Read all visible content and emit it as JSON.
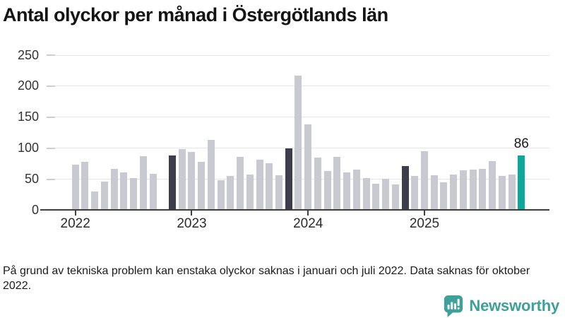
{
  "header": {
    "title": "Antal olyckor per månad i Östergötlands län"
  },
  "footer": {
    "note": "På grund av tekniska problem kan enstaka olyckor saknas i januari och juli 2022. Data saknas för oktober 2022.",
    "brand_name": "Newsworthy"
  },
  "chart_data": {
    "type": "bar",
    "title": "Antal olyckor per månad i Östergötlands län",
    "ylabel": "",
    "xlabel": "",
    "ylim": [
      0,
      250
    ],
    "yticks": [
      0,
      50,
      100,
      150,
      200,
      250
    ],
    "grid": "horizontal",
    "x_year_labels": [
      "2022",
      "2023",
      "2024",
      "2025"
    ],
    "annotation": {
      "label": "86",
      "month": "2025-11"
    },
    "colors": {
      "default": "#c9c9d1",
      "highlight": "#3d3d4c",
      "latest": "#0ca79d"
    },
    "series": [
      {
        "month": "2022-01",
        "value": 72,
        "role": "default"
      },
      {
        "month": "2022-02",
        "value": 76,
        "role": "default"
      },
      {
        "month": "2022-03",
        "value": 29,
        "role": "default"
      },
      {
        "month": "2022-04",
        "value": 44,
        "role": "default"
      },
      {
        "month": "2022-05",
        "value": 65,
        "role": "default"
      },
      {
        "month": "2022-06",
        "value": 59,
        "role": "default"
      },
      {
        "month": "2022-07",
        "value": 50,
        "role": "default"
      },
      {
        "month": "2022-08",
        "value": 85,
        "role": "default"
      },
      {
        "month": "2022-09",
        "value": 57,
        "role": "default"
      },
      {
        "month": "2022-10",
        "value": null,
        "role": "missing"
      },
      {
        "month": "2022-11",
        "value": 87,
        "role": "highlight"
      },
      {
        "month": "2022-12",
        "value": 97,
        "role": "default"
      },
      {
        "month": "2023-01",
        "value": 92,
        "role": "default"
      },
      {
        "month": "2023-02",
        "value": 76,
        "role": "default"
      },
      {
        "month": "2023-03",
        "value": 112,
        "role": "default"
      },
      {
        "month": "2023-04",
        "value": 47,
        "role": "default"
      },
      {
        "month": "2023-05",
        "value": 54,
        "role": "default"
      },
      {
        "month": "2023-06",
        "value": 84,
        "role": "default"
      },
      {
        "month": "2023-07",
        "value": 56,
        "role": "default"
      },
      {
        "month": "2023-08",
        "value": 80,
        "role": "default"
      },
      {
        "month": "2023-09",
        "value": 74,
        "role": "default"
      },
      {
        "month": "2023-10",
        "value": 55,
        "role": "default"
      },
      {
        "month": "2023-11",
        "value": 98,
        "role": "highlight"
      },
      {
        "month": "2023-12",
        "value": 215,
        "role": "default"
      },
      {
        "month": "2024-01",
        "value": 137,
        "role": "default"
      },
      {
        "month": "2024-02",
        "value": 83,
        "role": "default"
      },
      {
        "month": "2024-03",
        "value": 61,
        "role": "default"
      },
      {
        "month": "2024-04",
        "value": 84,
        "role": "default"
      },
      {
        "month": "2024-05",
        "value": 59,
        "role": "default"
      },
      {
        "month": "2024-06",
        "value": 64,
        "role": "default"
      },
      {
        "month": "2024-07",
        "value": 50,
        "role": "default"
      },
      {
        "month": "2024-08",
        "value": 41,
        "role": "default"
      },
      {
        "month": "2024-09",
        "value": 49,
        "role": "default"
      },
      {
        "month": "2024-10",
        "value": 40,
        "role": "default"
      },
      {
        "month": "2024-11",
        "value": 70,
        "role": "highlight"
      },
      {
        "month": "2024-12",
        "value": 53,
        "role": "default"
      },
      {
        "month": "2025-01",
        "value": 93,
        "role": "default"
      },
      {
        "month": "2025-02",
        "value": 55,
        "role": "default"
      },
      {
        "month": "2025-03",
        "value": 43,
        "role": "default"
      },
      {
        "month": "2025-04",
        "value": 56,
        "role": "default"
      },
      {
        "month": "2025-05",
        "value": 63,
        "role": "default"
      },
      {
        "month": "2025-06",
        "value": 64,
        "role": "default"
      },
      {
        "month": "2025-07",
        "value": 65,
        "role": "default"
      },
      {
        "month": "2025-08",
        "value": 78,
        "role": "default"
      },
      {
        "month": "2025-09",
        "value": 54,
        "role": "default"
      },
      {
        "month": "2025-10",
        "value": 56,
        "role": "default"
      },
      {
        "month": "2025-11",
        "value": 86,
        "role": "latest"
      }
    ]
  }
}
